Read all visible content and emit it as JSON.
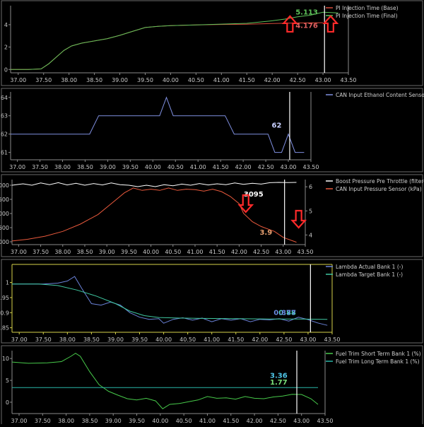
{
  "chart_data": [
    {
      "type": "line",
      "xlim": [
        36.85,
        43.5
      ],
      "ylim": [
        -0.3,
        5.7
      ],
      "xticks": [
        "37.00",
        "37.50",
        "38.00",
        "38.50",
        "39.00",
        "39.50",
        "40.00",
        "40.50",
        "41.00",
        "41.50",
        "42.00",
        "42.50",
        "43.00",
        "43.50"
      ],
      "yticks": [
        "0",
        "2",
        "4"
      ],
      "grid": false,
      "legend_position": "right",
      "series": [
        {
          "name": "PI Injection Time (Base)",
          "color": "#d84a3a",
          "points": [
            [
              36.85,
              0
            ],
            [
              37.2,
              0
            ],
            [
              37.45,
              0.05
            ],
            [
              37.6,
              0.5
            ],
            [
              37.75,
              1.1
            ],
            [
              37.9,
              1.7
            ],
            [
              38.05,
              2.1
            ],
            [
              38.25,
              2.35
            ],
            [
              38.5,
              2.55
            ],
            [
              38.75,
              2.75
            ],
            [
              39.0,
              3.05
            ],
            [
              39.25,
              3.4
            ],
            [
              39.5,
              3.75
            ],
            [
              39.75,
              3.85
            ],
            [
              40.0,
              3.92
            ],
            [
              40.5,
              3.98
            ],
            [
              41.0,
              4.02
            ],
            [
              41.5,
              4.04
            ],
            [
              42.0,
              4.1
            ],
            [
              42.5,
              4.15
            ],
            [
              43.0,
              4.176
            ]
          ]
        },
        {
          "name": "PI Injection Time (Final)",
          "color": "#5ec25a",
          "points": [
            [
              36.85,
              0
            ],
            [
              37.2,
              0
            ],
            [
              37.45,
              0.05
            ],
            [
              37.6,
              0.5
            ],
            [
              37.75,
              1.1
            ],
            [
              37.9,
              1.7
            ],
            [
              38.05,
              2.1
            ],
            [
              38.25,
              2.35
            ],
            [
              38.5,
              2.55
            ],
            [
              38.75,
              2.75
            ],
            [
              39.0,
              3.05
            ],
            [
              39.25,
              3.4
            ],
            [
              39.5,
              3.75
            ],
            [
              39.75,
              3.85
            ],
            [
              40.0,
              3.92
            ],
            [
              40.5,
              3.98
            ],
            [
              41.0,
              4.05
            ],
            [
              41.5,
              4.12
            ],
            [
              42.0,
              4.35
            ],
            [
              42.25,
              4.5
            ],
            [
              42.5,
              4.7
            ],
            [
              42.75,
              4.85
            ],
            [
              43.0,
              5.113
            ],
            [
              43.3,
              5.05
            ]
          ]
        }
      ],
      "cursor_x": 43.03,
      "readouts": [
        {
          "text": "5.113",
          "color": "#5ec25a",
          "x": 42.9,
          "y": 4.9
        },
        {
          "text": "4.176",
          "color": "#e06060",
          "x": 42.9,
          "y": 3.7
        }
      ],
      "arrows": [
        {
          "x": 42.35,
          "y": 4.0
        },
        {
          "x": 43.15,
          "y": 4.0
        }
      ]
    },
    {
      "type": "line",
      "xlim": [
        36.85,
        43.5
      ],
      "ylim": [
        60.6,
        64.3
      ],
      "xticks": [
        "37.00",
        "37.50",
        "38.00",
        "38.50",
        "39.00",
        "39.50",
        "40.00",
        "40.50",
        "41.00",
        "41.50",
        "42.00",
        "42.50",
        "43.00",
        "43.50"
      ],
      "yticks": [
        "61",
        "62",
        "63",
        "64"
      ],
      "grid": false,
      "legend_position": "right",
      "series": [
        {
          "name": "CAN Input Ethanol Content Sensor (%)",
          "color": "#7f8fe0",
          "points": [
            [
              36.85,
              62
            ],
            [
              38.6,
              62
            ],
            [
              38.8,
              63
            ],
            [
              40.15,
              63
            ],
            [
              40.3,
              64
            ],
            [
              40.45,
              63
            ],
            [
              41.6,
              63
            ],
            [
              41.8,
              62
            ],
            [
              42.55,
              62
            ],
            [
              42.7,
              61
            ],
            [
              42.85,
              61
            ],
            [
              43.0,
              62
            ],
            [
              43.15,
              61
            ],
            [
              43.35,
              61
            ]
          ]
        }
      ],
      "cursor_x": 43.03,
      "readouts": [
        {
          "text": "62",
          "color": "#c8d0ff",
          "x": 42.85,
          "y": 62.35
        }
      ]
    },
    {
      "type": "line",
      "xlim": [
        36.85,
        43.5
      ],
      "ylim": [
        900,
        3200
      ],
      "y2lim": [
        3.6,
        6.3
      ],
      "xticks": [
        "37.00",
        "37.50",
        "38.00",
        "38.50",
        "39.00",
        "39.50",
        "40.00",
        "40.50",
        "41.00",
        "41.50",
        "42.00",
        "42.50",
        "43.00",
        "43.50"
      ],
      "yticks": [
        "1000",
        "1500",
        "2000",
        "2500",
        "3000"
      ],
      "y2ticks": [
        "4",
        "5",
        "6"
      ],
      "grid": false,
      "legend_position": "right",
      "series": [
        {
          "name": "Boost Pressure Pre Throttle (filtered) (hPa)",
          "color": "#ffffff",
          "axis": "left",
          "points": [
            [
              36.85,
              3000
            ],
            [
              37.1,
              3050
            ],
            [
              37.3,
              3000
            ],
            [
              37.5,
              3080
            ],
            [
              37.7,
              3020
            ],
            [
              37.9,
              3090
            ],
            [
              38.1,
              3010
            ],
            [
              38.3,
              3070
            ],
            [
              38.5,
              3000
            ],
            [
              38.7,
              3060
            ],
            [
              38.9,
              3010
            ],
            [
              39.1,
              3080
            ],
            [
              39.3,
              3020
            ],
            [
              39.5,
              3000
            ],
            [
              39.7,
              2950
            ],
            [
              39.9,
              3000
            ],
            [
              40.1,
              2950
            ],
            [
              40.3,
              3020
            ],
            [
              40.5,
              2980
            ],
            [
              40.7,
              3040
            ],
            [
              40.9,
              3000
            ],
            [
              41.1,
              3060
            ],
            [
              41.3,
              3010
            ],
            [
              41.5,
              3050
            ],
            [
              41.7,
              3020
            ],
            [
              41.9,
              3080
            ],
            [
              42.1,
              3030
            ],
            [
              42.3,
              3070
            ],
            [
              42.5,
              3040
            ],
            [
              42.7,
              3090
            ],
            [
              42.9,
              3100
            ],
            [
              43.1,
              3095
            ],
            [
              43.3,
              3100
            ]
          ]
        },
        {
          "name": "CAN Input Pressure Sensor (kPa)",
          "color": "#e8593c",
          "axis": "right",
          "points": [
            [
              36.85,
              3.75
            ],
            [
              37.2,
              3.82
            ],
            [
              37.6,
              3.95
            ],
            [
              38.0,
              4.15
            ],
            [
              38.4,
              4.45
            ],
            [
              38.8,
              4.85
            ],
            [
              39.1,
              5.3
            ],
            [
              39.4,
              5.75
            ],
            [
              39.6,
              5.95
            ],
            [
              39.8,
              5.85
            ],
            [
              40.0,
              5.9
            ],
            [
              40.2,
              5.85
            ],
            [
              40.4,
              5.95
            ],
            [
              40.6,
              5.85
            ],
            [
              40.8,
              5.9
            ],
            [
              41.0,
              5.88
            ],
            [
              41.2,
              5.82
            ],
            [
              41.4,
              5.9
            ],
            [
              41.6,
              5.8
            ],
            [
              41.8,
              5.6
            ],
            [
              42.0,
              5.3
            ],
            [
              42.1,
              4.9
            ],
            [
              42.3,
              4.55
            ],
            [
              42.5,
              4.35
            ],
            [
              42.8,
              4.15
            ],
            [
              43.0,
              3.9
            ],
            [
              43.3,
              3.7
            ]
          ]
        }
      ],
      "cursor_x": 43.03,
      "readouts": [
        {
          "text": "3095",
          "color": "#ffffff",
          "x": 42.55,
          "y": 2600
        },
        {
          "text": "3.9",
          "color": "#e8a070",
          "x": 42.75,
          "y": 1250
        }
      ],
      "arrows": [
        {
          "x": 42.15,
          "y": 2300
        },
        {
          "x": 43.35,
          "y": 1750
        }
      ]
    },
    {
      "type": "line",
      "xlim": [
        36.85,
        43.5
      ],
      "ylim": [
        0.835,
        1.06
      ],
      "xticks": [
        "37.00",
        "37.50",
        "38.00",
        "38.50",
        "39.00",
        "39.50",
        "40.00",
        "40.50",
        "41.00",
        "41.50",
        "42.00",
        "42.50",
        "43.00",
        "43.50"
      ],
      "yticks": [
        "0.85",
        "0.9",
        "0.95",
        "1"
      ],
      "grid": false,
      "axis_color": "#d6d24a",
      "legend_position": "right",
      "series": [
        {
          "name": "Lambda Actual Bank 1 (-)",
          "color": "#6a82d8",
          "points": [
            [
              36.85,
              0.995
            ],
            [
              37.2,
              0.995
            ],
            [
              37.5,
              0.995
            ],
            [
              37.8,
              0.998
            ],
            [
              38.0,
              1.005
            ],
            [
              38.15,
              1.02
            ],
            [
              38.3,
              0.98
            ],
            [
              38.5,
              0.93
            ],
            [
              38.7,
              0.925
            ],
            [
              38.9,
              0.935
            ],
            [
              39.1,
              0.925
            ],
            [
              39.3,
              0.9
            ],
            [
              39.5,
              0.885
            ],
            [
              39.7,
              0.878
            ],
            [
              39.9,
              0.88
            ],
            [
              40.0,
              0.865
            ],
            [
              40.2,
              0.878
            ],
            [
              40.4,
              0.883
            ],
            [
              40.6,
              0.875
            ],
            [
              40.8,
              0.882
            ],
            [
              41.0,
              0.87
            ],
            [
              41.2,
              0.88
            ],
            [
              41.4,
              0.875
            ],
            [
              41.6,
              0.88
            ],
            [
              41.8,
              0.87
            ],
            [
              42.0,
              0.878
            ],
            [
              42.2,
              0.876
            ],
            [
              42.4,
              0.88
            ],
            [
              42.6,
              0.872
            ],
            [
              42.8,
              0.885
            ],
            [
              43.0,
              0.877
            ],
            [
              43.2,
              0.866
            ],
            [
              43.4,
              0.858
            ]
          ]
        },
        {
          "name": "Lambda Target Bank 1 (-)",
          "color": "#3fc7a0",
          "points": [
            [
              36.85,
              0.995
            ],
            [
              37.4,
              0.995
            ],
            [
              37.8,
              0.99
            ],
            [
              38.2,
              0.975
            ],
            [
              38.6,
              0.955
            ],
            [
              39.0,
              0.93
            ],
            [
              39.3,
              0.905
            ],
            [
              39.6,
              0.89
            ],
            [
              39.9,
              0.884
            ],
            [
              40.3,
              0.882
            ],
            [
              40.8,
              0.881
            ],
            [
              41.5,
              0.88
            ],
            [
              42.2,
              0.879
            ],
            [
              42.8,
              0.879
            ],
            [
              43.4,
              0.878
            ]
          ]
        }
      ],
      "cursor_x": 43.05,
      "readouts": [
        {
          "text": "0.88",
          "color": "#4fd0c0",
          "x": 42.75,
          "y": 0.893
        },
        {
          "text": "0.877",
          "color": "#6a8ae0",
          "x": 42.75,
          "y": 0.893
        }
      ]
    },
    {
      "type": "line",
      "xlim": [
        36.85,
        43.5
      ],
      "ylim": [
        -2.6,
        11.8
      ],
      "xticks": [
        "37.00",
        "37.50",
        "38.00",
        "38.50",
        "39.00",
        "39.50",
        "40.00",
        "40.50",
        "41.00",
        "41.50",
        "42.00",
        "42.50",
        "43.00",
        "43.50"
      ],
      "yticks": [
        "0",
        "5",
        "10"
      ],
      "grid": false,
      "legend_position": "right",
      "series": [
        {
          "name": "Fuel Trim Short Term Bank 1 (%)",
          "color": "#47c94a",
          "points": [
            [
              36.85,
              9.2
            ],
            [
              37.2,
              8.9
            ],
            [
              37.6,
              9.0
            ],
            [
              37.9,
              9.3
            ],
            [
              38.1,
              10.5
            ],
            [
              38.2,
              11.2
            ],
            [
              38.3,
              10.5
            ],
            [
              38.5,
              7.0
            ],
            [
              38.7,
              4.0
            ],
            [
              38.9,
              2.5
            ],
            [
              39.1,
              1.6
            ],
            [
              39.3,
              0.8
            ],
            [
              39.5,
              0.5
            ],
            [
              39.7,
              0.9
            ],
            [
              39.9,
              0.3
            ],
            [
              40.05,
              -1.5
            ],
            [
              40.2,
              -0.5
            ],
            [
              40.4,
              -0.3
            ],
            [
              40.6,
              0.1
            ],
            [
              40.8,
              0.5
            ],
            [
              41.0,
              1.3
            ],
            [
              41.2,
              0.9
            ],
            [
              41.4,
              1.0
            ],
            [
              41.6,
              0.7
            ],
            [
              41.8,
              1.3
            ],
            [
              42.0,
              0.9
            ],
            [
              42.2,
              0.8
            ],
            [
              42.4,
              1.2
            ],
            [
              42.6,
              1.4
            ],
            [
              42.8,
              1.8
            ],
            [
              43.0,
              1.77
            ],
            [
              43.2,
              0.8
            ],
            [
              43.35,
              -0.5
            ]
          ]
        },
        {
          "name": "Fuel Trim Long Term Bank 1 (%)",
          "color": "#29b6a8",
          "points": [
            [
              36.85,
              3.36
            ],
            [
              43.35,
              3.36
            ]
          ]
        }
      ],
      "cursor_x": 42.9,
      "readouts": [
        {
          "text": "3.36",
          "color": "#4fc6e8",
          "x": 42.7,
          "y": 5.6
        },
        {
          "text": "1.77",
          "color": "#7ae07a",
          "x": 42.7,
          "y": 4.0
        }
      ]
    }
  ]
}
